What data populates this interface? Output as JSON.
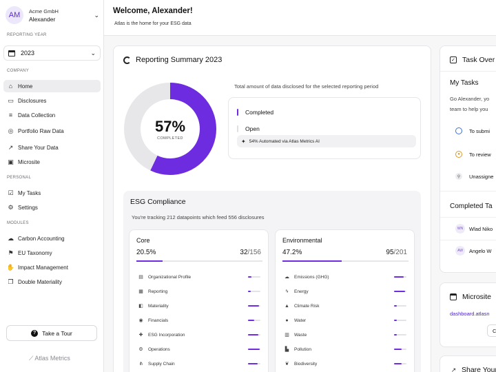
{
  "sidebar": {
    "org": {
      "initials": "AM",
      "company": "Acme GmbH",
      "user": "Alexander"
    },
    "reporting_year_label": "REPORTING YEAR",
    "year": "2023",
    "company_label": "COMPANY",
    "company_items": [
      {
        "label": "Home",
        "icon": "home-icon"
      },
      {
        "label": "Disclosures",
        "icon": "document-icon"
      },
      {
        "label": "Data Collection",
        "icon": "database-icon"
      },
      {
        "label": "Portfolio Raw Data",
        "icon": "globe-icon"
      },
      {
        "label": "Share Your Data",
        "icon": "share-icon"
      },
      {
        "label": "Microsite",
        "icon": "window-icon"
      }
    ],
    "personal_label": "PERSONAL",
    "personal_items": [
      {
        "label": "My Tasks",
        "icon": "checkbox-icon"
      },
      {
        "label": "Settings",
        "icon": "gear-icon"
      }
    ],
    "modules_label": "MODULES",
    "module_items": [
      {
        "label": "Carbon Accounting",
        "icon": "cloud-icon"
      },
      {
        "label": "EU Taxonomy",
        "icon": "flag-icon"
      },
      {
        "label": "Impact Management",
        "icon": "hand-icon"
      },
      {
        "label": "Double Materiality",
        "icon": "copy-icon"
      }
    ],
    "tour_label": "Take a Tour",
    "brand": "Atlas Metrics"
  },
  "header": {
    "welcome": "Welcome, Alexander!",
    "tagline": "Atlas is the home for your ESG data"
  },
  "summary": {
    "title": "Reporting Summary 2023",
    "percent": "57%",
    "percent_value": 0.57,
    "completed_caption": "COMPLETED",
    "disclosed_text": "Total amount of data disclosed for the selected reporting period",
    "legend_completed": "Completed",
    "legend_open": "Open",
    "automated": "54% Automated via Atlas Metrics AI",
    "accent_color": "#6e2ce0",
    "open_color": "#e7e7ea"
  },
  "esg": {
    "title": "ESG Compliance",
    "subtitle": "You're tracking 212 datapoints which feed 556 disclosures",
    "core": {
      "title": "Core",
      "percent": "20.5%",
      "percent_value": 0.205,
      "count": "32",
      "total": "/156",
      "items": [
        {
          "label": "Organizational Profile",
          "icon": "building-icon",
          "fill": 0.25
        },
        {
          "label": "Reporting",
          "icon": "report-icon",
          "fill": 0.2
        },
        {
          "label": "Materiality",
          "icon": "layers-icon",
          "fill": 0.9
        },
        {
          "label": "Financials",
          "icon": "coin-icon",
          "fill": 0.5
        },
        {
          "label": "ESG Incorporation",
          "icon": "puzzle-icon",
          "fill": 0.85
        },
        {
          "label": "Operations",
          "icon": "cog-icon",
          "fill": 0.95
        },
        {
          "label": "Supply Chain",
          "icon": "network-icon",
          "fill": 0.8
        }
      ]
    },
    "environmental": {
      "title": "Environmental",
      "percent": "47.2%",
      "percent_value": 0.472,
      "count": "95",
      "total": "/201",
      "items": [
        {
          "label": "Emissions (GHG)",
          "icon": "cloud-icon",
          "fill": 0.75
        },
        {
          "label": "Energy",
          "icon": "bolt-icon",
          "fill": 0.9
        },
        {
          "label": "Climate Risk",
          "icon": "fire-icon",
          "fill": 0.2
        },
        {
          "label": "Water",
          "icon": "drop-icon",
          "fill": 0.2
        },
        {
          "label": "Waste",
          "icon": "trash-icon",
          "fill": 0.2
        },
        {
          "label": "Pollution",
          "icon": "factory-icon",
          "fill": 0.6
        },
        {
          "label": "Biodiversity",
          "icon": "leaf-icon",
          "fill": 0.6
        }
      ]
    }
  },
  "tasks": {
    "title": "Task Over",
    "my_tasks": "My Tasks",
    "intro_1": "Go Alexander, yo",
    "intro_2": "team to help you",
    "rows": [
      {
        "label": "To submi",
        "icon": "circle-icon"
      },
      {
        "label": "To review",
        "icon": "eye-icon"
      },
      {
        "label": "Unassigne",
        "icon": "person-icon"
      }
    ],
    "completed_title": "Completed Ta",
    "completed": [
      {
        "initials": "WN",
        "name": "Wlad Niko"
      },
      {
        "initials": "AW",
        "name": "Angelo W"
      }
    ]
  },
  "microsite": {
    "title": "Microsite",
    "link": "dashboard.atlasn",
    "button": "C"
  },
  "share": {
    "title": "Share Your"
  }
}
